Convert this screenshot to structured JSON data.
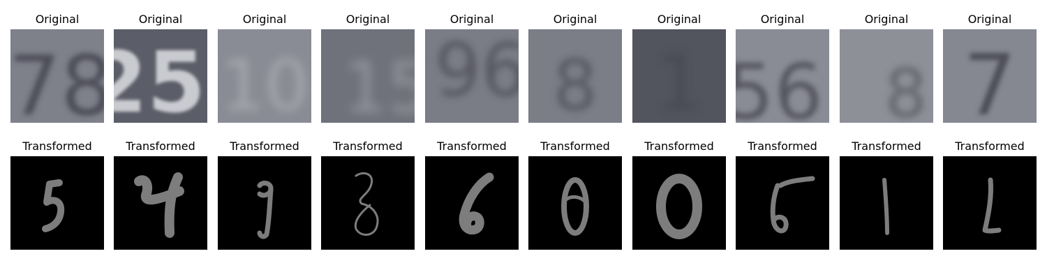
{
  "row_titles": {
    "original": "Original",
    "transformed": "Transformed"
  },
  "pairs": [
    {
      "original_digits": "78",
      "transformed_digit": "5"
    },
    {
      "original_digits": "25",
      "transformed_digit": "4"
    },
    {
      "original_digits": "10",
      "transformed_digit": "9"
    },
    {
      "original_digits": "15",
      "transformed_digit": "8"
    },
    {
      "original_digits": "96",
      "transformed_digit": "6"
    },
    {
      "original_digits": "8",
      "transformed_digit": "0"
    },
    {
      "original_digits": "1",
      "transformed_digit": "0"
    },
    {
      "original_digits": "56",
      "transformed_digit": "5"
    },
    {
      "original_digits": "8",
      "transformed_digit": "1"
    },
    {
      "original_digits": "7",
      "transformed_digit": "2"
    }
  ],
  "colors": {
    "original_backgrounds": [
      "#7e808a",
      "#5b5d68",
      "#8a8c95",
      "#6f717b",
      "#7a7c86",
      "#7b7d87",
      "#52545e",
      "#8a8c95",
      "#8e9098",
      "#858791"
    ],
    "original_glyph_dark": "#3f414b",
    "original_glyph_light": "#d7d8dc",
    "transformed_background": "#000000",
    "transformed_stroke": "#7d7d7d"
  }
}
